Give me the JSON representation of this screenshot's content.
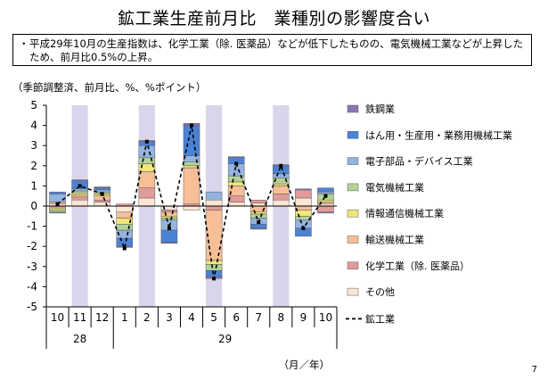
{
  "title": "鉱工業生産前月比　業種別の影響度合い",
  "summary": "平成29年10月の生産指数は、化学工業（除. 医薬品）などが低下したものの、電気機械工業などが上昇したため、前月比0.5%の上昇。",
  "bullet": "・",
  "unit_label": "（季節調整済、前月比、%、%ポイント）",
  "page_number": "7",
  "colors": {
    "shade": "#d9d5ea",
    "steel": "#8a76b4",
    "general_machinery": "#4a82d6",
    "electronic_parts": "#93b3e0",
    "electrical": "#b2d29a",
    "ict": "#f1e67a",
    "transport": "#f6bf97",
    "chemical": "#e29a9a",
    "others": "#fbe5d4",
    "line": "#000000"
  },
  "chart_data": {
    "type": "bar",
    "stacked": true,
    "categories": [
      "10",
      "11",
      "12",
      "1",
      "2",
      "3",
      "4",
      "5",
      "6",
      "7",
      "8",
      "9",
      "10"
    ],
    "year_labels": [
      {
        "label": "28",
        "from": 0,
        "to": 2
      },
      {
        "label": "29",
        "from": 3,
        "to": 12
      }
    ],
    "x_unit": "（月／年）",
    "ylim": [
      -5,
      5
    ],
    "yticks": [
      5,
      4,
      3,
      2,
      1,
      0,
      -1,
      -2,
      -3,
      -4,
      -5
    ],
    "shaded_categories": [
      1,
      4,
      7,
      10
    ],
    "series": [
      {
        "name": "その他",
        "color_key": "others",
        "values": [
          0.1,
          0.3,
          0.2,
          -0.3,
          0.4,
          -0.2,
          -0.2,
          0.3,
          0.2,
          0.15,
          0.3,
          0.4,
          0.1
        ]
      },
      {
        "name": "化学工業（除. 医薬品）",
        "color_key": "chemical",
        "values": [
          -0.1,
          0.15,
          0.1,
          0.1,
          0.5,
          -0.1,
          0.1,
          -0.2,
          0.3,
          0.15,
          0.3,
          0.4,
          -0.3
        ]
      },
      {
        "name": "輸送機械工業",
        "color_key": "transport",
        "values": [
          0.1,
          0.1,
          0.2,
          -0.3,
          0.8,
          -0.2,
          1.8,
          -2.5,
          0.5,
          -0.3,
          0.4,
          -0.2,
          0.1
        ]
      },
      {
        "name": "情報通信機械工業",
        "color_key": "ict",
        "values": [
          -0.1,
          0.1,
          0.1,
          -0.3,
          0.4,
          -0.1,
          0.1,
          -0.2,
          0.2,
          -0.1,
          0.1,
          -0.3,
          0.1
        ]
      },
      {
        "name": "電気機械工業",
        "color_key": "electrical",
        "values": [
          -0.1,
          0.1,
          0.1,
          -0.3,
          0.3,
          -0.1,
          0.2,
          -0.3,
          0.3,
          -0.2,
          0.3,
          -0.2,
          0.3
        ]
      },
      {
        "name": "電子部品・デバイス工業",
        "color_key": "electronic_parts",
        "values": [
          0.4,
          0.1,
          0.1,
          -0.4,
          0.6,
          -0.5,
          0.3,
          0.4,
          0.6,
          -0.3,
          0.2,
          -0.4,
          0.1
        ]
      },
      {
        "name": "はん用・生産用・業務用機械工業",
        "color_key": "general_machinery",
        "values": [
          0.1,
          0.4,
          0.1,
          -0.4,
          0.2,
          -0.6,
          1.5,
          -0.3,
          0.3,
          -0.2,
          0.4,
          -0.4,
          0.2
        ]
      },
      {
        "name": "鉄鋼業",
        "color_key": "steel",
        "values": [
          -0.05,
          0.05,
          0.05,
          -0.05,
          0.05,
          -0.05,
          0.1,
          -0.1,
          0.05,
          -0.05,
          0.05,
          0.05,
          -0.05
        ]
      }
    ],
    "legend_order": [
      "鉄鋼業",
      "はん用・生産用・業務用機械工業",
      "電子部品・デバイス工業",
      "電気機械工業",
      "情報通信機械工業",
      "輸送機械工業",
      "化学工業（除. 医薬品）",
      "その他"
    ],
    "line": {
      "name": "鉱工業",
      "values": [
        0.1,
        1.0,
        0.6,
        -2.1,
        3.2,
        -1.1,
        4.0,
        -3.6,
        2.1,
        -0.8,
        2.0,
        -1.1,
        0.5
      ]
    }
  }
}
